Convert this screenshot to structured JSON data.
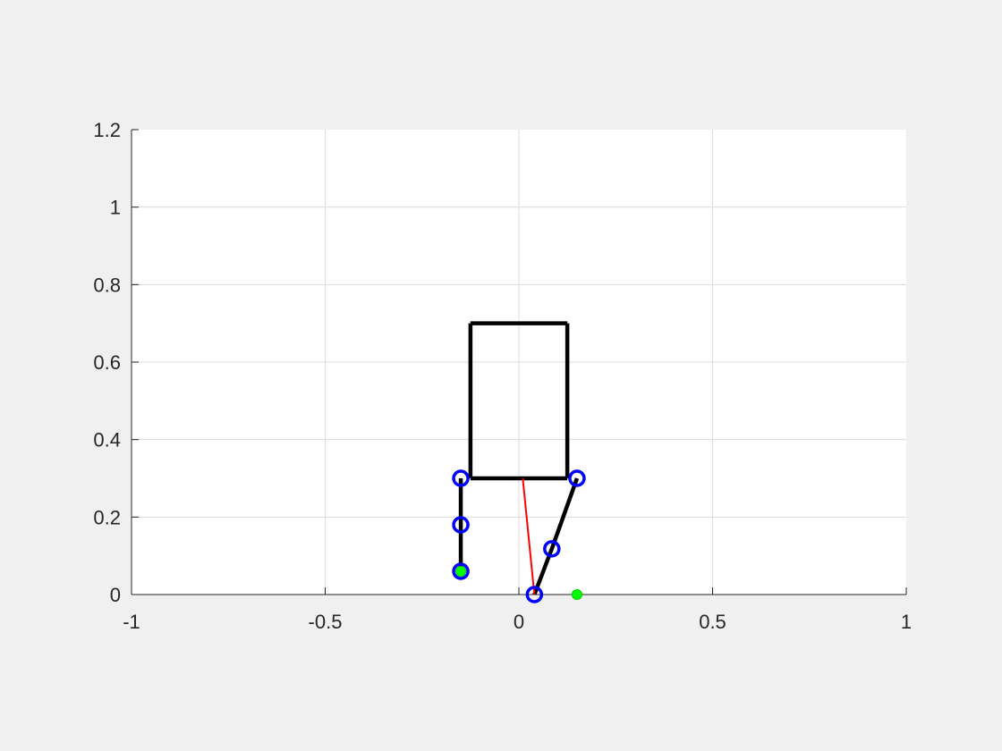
{
  "chart_data": {
    "type": "line",
    "title": "",
    "xlabel": "",
    "ylabel": "",
    "xlim": [
      -1,
      1
    ],
    "ylim": [
      0,
      1.2
    ],
    "grid": true,
    "x_ticks": [
      -1,
      -0.5,
      0,
      0.5,
      1
    ],
    "x_tick_labels": [
      "-1",
      "-0.5",
      "0",
      "0.5",
      "1"
    ],
    "y_ticks": [
      0,
      0.2,
      0.4,
      0.6,
      0.8,
      1,
      1.2
    ],
    "y_tick_labels": [
      "0",
      "0.2",
      "0.4",
      "0.6",
      "0.8",
      "1",
      "1.2"
    ],
    "series": [
      {
        "style": "segments",
        "color": "#000000",
        "segments": [
          [
            [
              -0.125,
              0.3
            ],
            [
              0.125,
              0.3
            ]
          ],
          [
            [
              -0.125,
              0.3
            ],
            [
              -0.125,
              0.7
            ]
          ],
          [
            [
              0.125,
              0.3
            ],
            [
              0.125,
              0.7
            ]
          ],
          [
            [
              -0.125,
              0.7
            ],
            [
              0.125,
              0.7
            ]
          ],
          [
            [
              -0.15,
              0.3
            ],
            [
              -0.15,
              0.18
            ],
            [
              -0.15,
              0.06
            ]
          ],
          [
            [
              0.15,
              0.3
            ],
            [
              0.085,
              0.118
            ],
            [
              0.04,
              0.0
            ]
          ]
        ]
      },
      {
        "style": "line",
        "color": "#ff0000",
        "points": [
          [
            0.01,
            0.3
          ],
          [
            0.04,
            0.0
          ]
        ]
      },
      {
        "style": "markers",
        "marker": "open-circle",
        "color": "#0000ff",
        "points": [
          [
            -0.15,
            0.3
          ],
          [
            -0.15,
            0.18
          ],
          [
            -0.15,
            0.06
          ],
          [
            0.15,
            0.3
          ],
          [
            0.085,
            0.118
          ],
          [
            0.04,
            0.0
          ]
        ]
      },
      {
        "style": "markers",
        "marker": "filled-circle",
        "color": "#00ff00",
        "points": [
          [
            -0.15,
            0.06
          ],
          [
            0.15,
            0.0
          ]
        ]
      }
    ]
  }
}
